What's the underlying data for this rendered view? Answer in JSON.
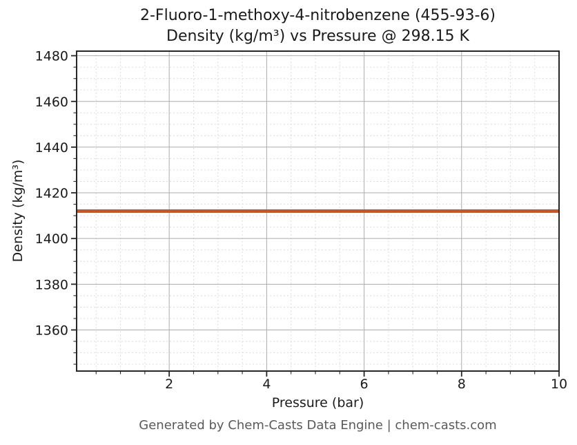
{
  "figure": {
    "title_line1": "2-Fluoro-1-methoxy-4-nitrobenzene (455-93-6)",
    "title_line2": "Density (kg/m³) vs Pressure @ 298.15 K",
    "footer": "Generated by Chem-Casts Data Engine | chem-casts.com"
  },
  "chart_data": {
    "type": "line",
    "title": "2-Fluoro-1-methoxy-4-nitrobenzene (455-93-6) — Density (kg/m³) vs Pressure @ 298.15 K",
    "xlabel": "Pressure (bar)",
    "ylabel": "Density (kg/m³)",
    "xlim": [
      0.1,
      10
    ],
    "ylim": [
      1342,
      1482
    ],
    "x_major_ticks": [
      2,
      4,
      6,
      8,
      10
    ],
    "x_minor_step": 0.5,
    "y_major_ticks": [
      1360,
      1380,
      1400,
      1420,
      1440,
      1460,
      1480
    ],
    "y_minor_step": 5,
    "grid": {
      "major": "solid",
      "minor": "dashed"
    },
    "legend_position": "none",
    "series": [
      {
        "name": "Density",
        "x": [
          0.1,
          10
        ],
        "y": [
          1412,
          1412
        ],
        "color": "#d0531f",
        "line_width": 5
      }
    ]
  },
  "style": {
    "line_color": "#d0531f",
    "grid_major_color": "#ababab",
    "grid_minor_color": "#d9d9d9",
    "spine_color": "#262626",
    "tick_color": "#262626",
    "text_color": "#1a1a1a",
    "footer_color": "#595959",
    "background": "#ffffff"
  }
}
